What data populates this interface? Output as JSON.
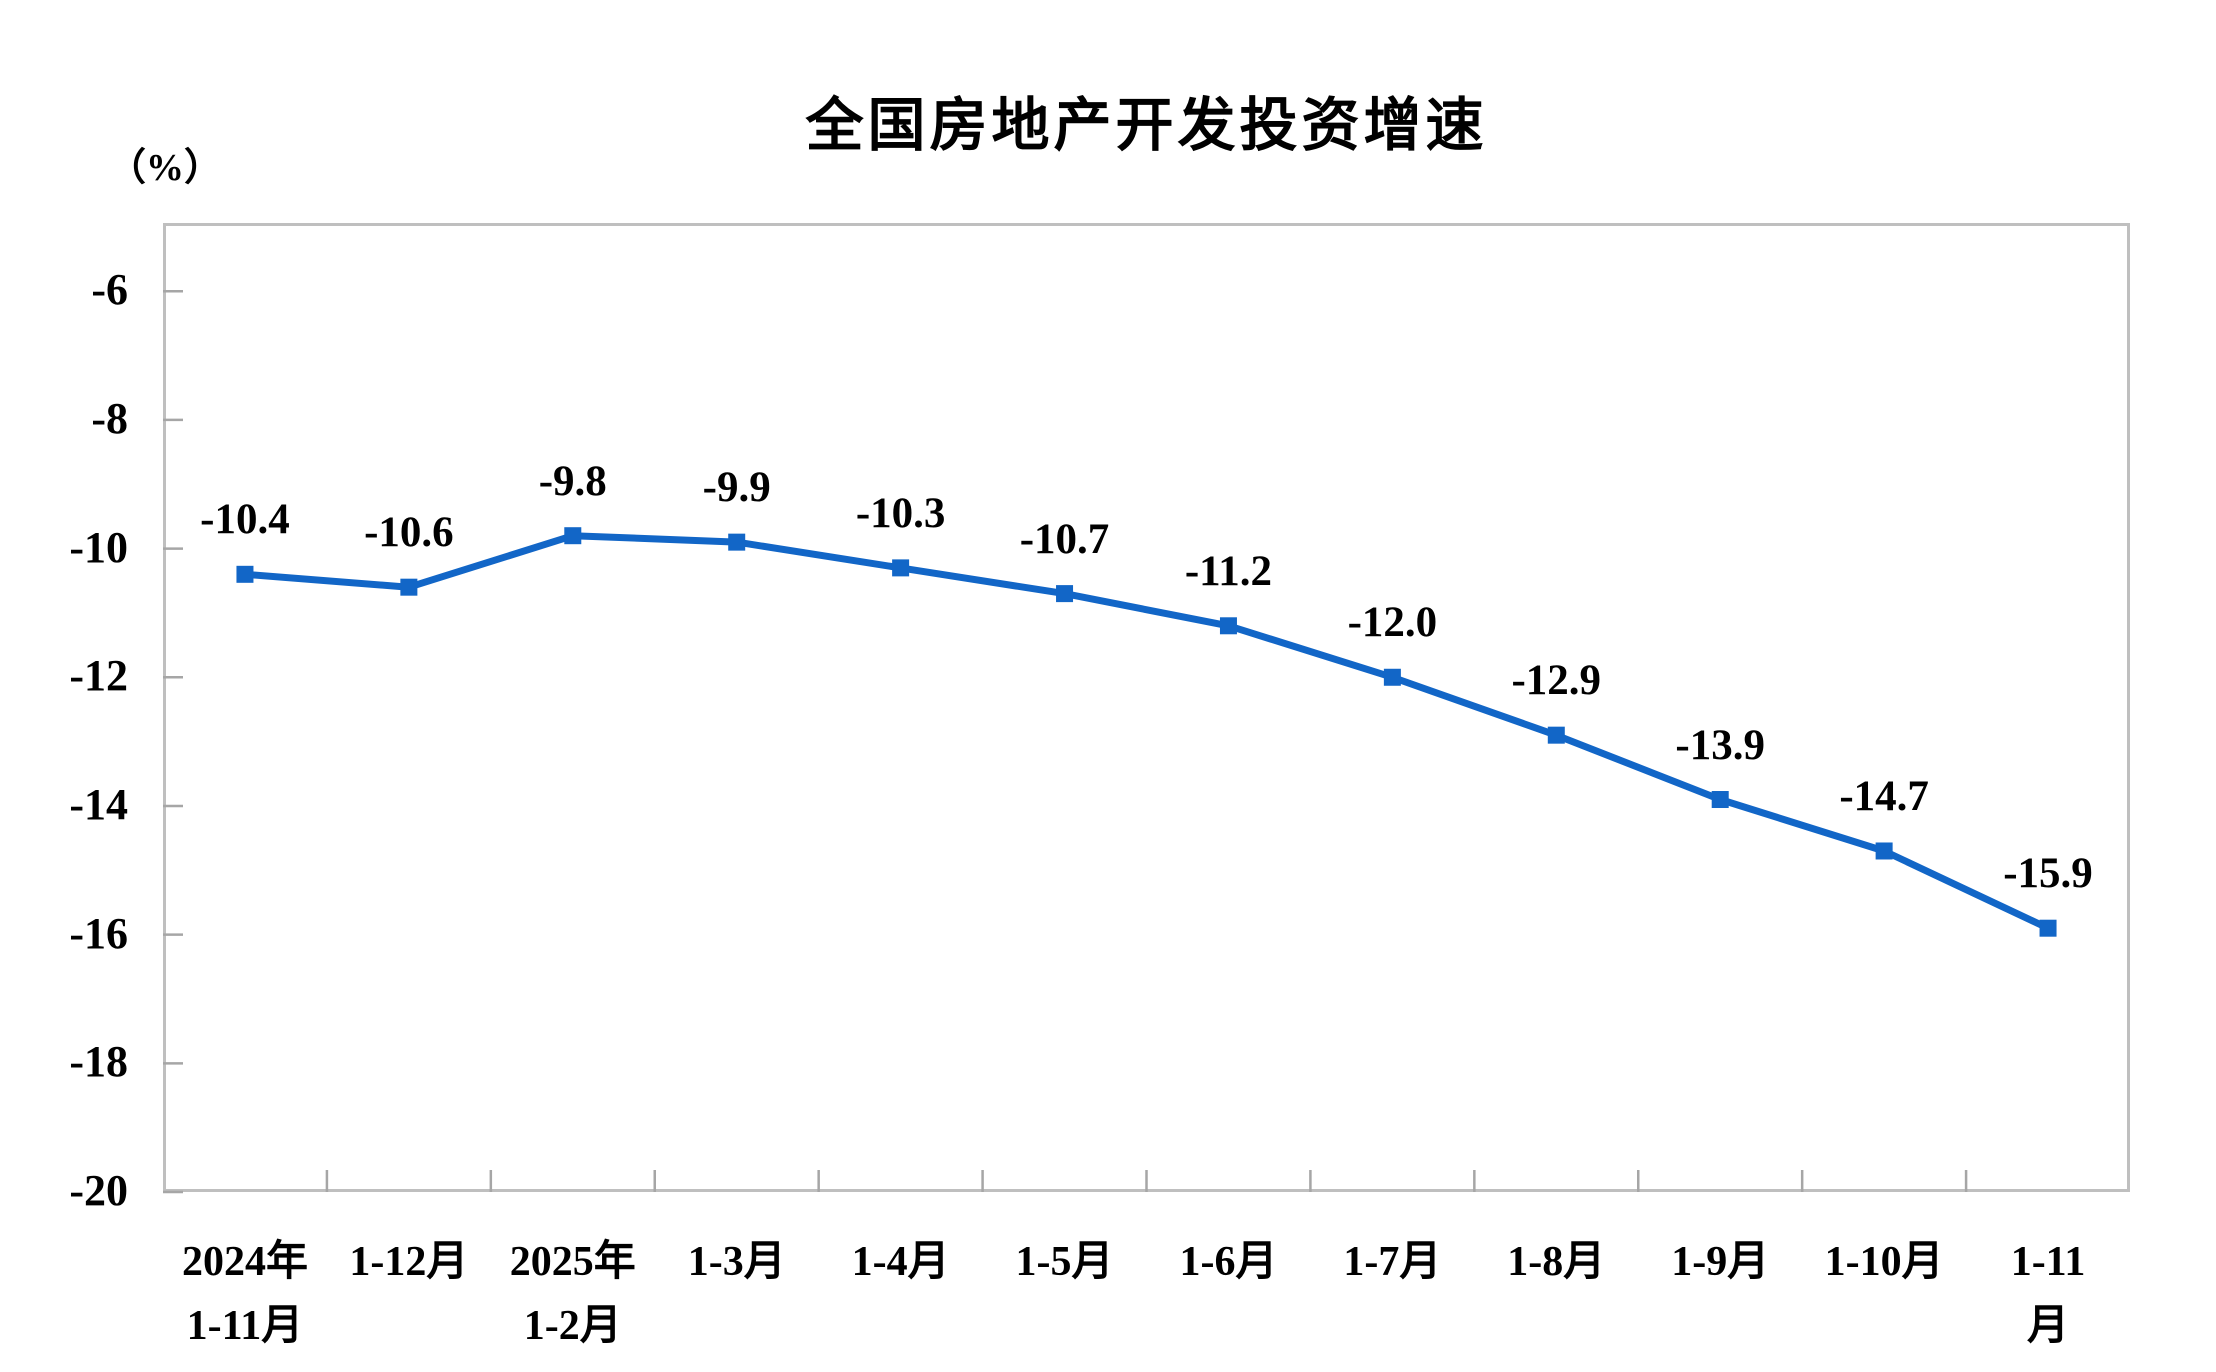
{
  "page": {
    "background": "#ffffff"
  },
  "chart_data": {
    "type": "line",
    "title": "全国房地产开发投资增速",
    "unit_label": "（%）",
    "xlabel": "",
    "ylabel": "",
    "categories": [
      "2024年\n1-11月",
      "1-12月",
      "2025年\n1-2月",
      "1-3月",
      "1-4月",
      "1-5月",
      "1-6月",
      "1-7月",
      "1-8月",
      "1-9月",
      "1-10月",
      "1-11月"
    ],
    "series": [
      {
        "name": "全国房地产开发投资增速",
        "values": [
          -10.4,
          -10.6,
          -9.8,
          -9.9,
          -10.3,
          -10.7,
          -11.2,
          -12.0,
          -12.9,
          -13.9,
          -14.7,
          -15.9
        ],
        "labels": [
          "-10.4",
          "-10.6",
          "-9.8",
          "-9.9",
          "-10.3",
          "-10.7",
          "-11.2",
          "-12.0",
          "-12.9",
          "-13.9",
          "-14.7",
          "-15.9"
        ]
      }
    ],
    "ylim": [
      -20,
      -4.94
    ],
    "yticks": [
      {
        "value": -6,
        "label": "-6"
      },
      {
        "value": -8,
        "label": "-8"
      },
      {
        "value": -10,
        "label": "-10"
      },
      {
        "value": -12,
        "label": "-12"
      },
      {
        "value": -14,
        "label": "-14"
      },
      {
        "value": -16,
        "label": "-16"
      },
      {
        "value": -18,
        "label": "-18"
      },
      {
        "value": -20,
        "label": "-20"
      }
    ],
    "grid": false,
    "legend_position": "none",
    "marker_shape": "square",
    "colors": {
      "line": "#1266C7",
      "marker": "#1266C7",
      "axis_border": "#BFBFBF",
      "tick_mark": "#A6A6A6",
      "title_text": "#000000",
      "label_text": "#000000",
      "axis_text": "#000000"
    }
  }
}
